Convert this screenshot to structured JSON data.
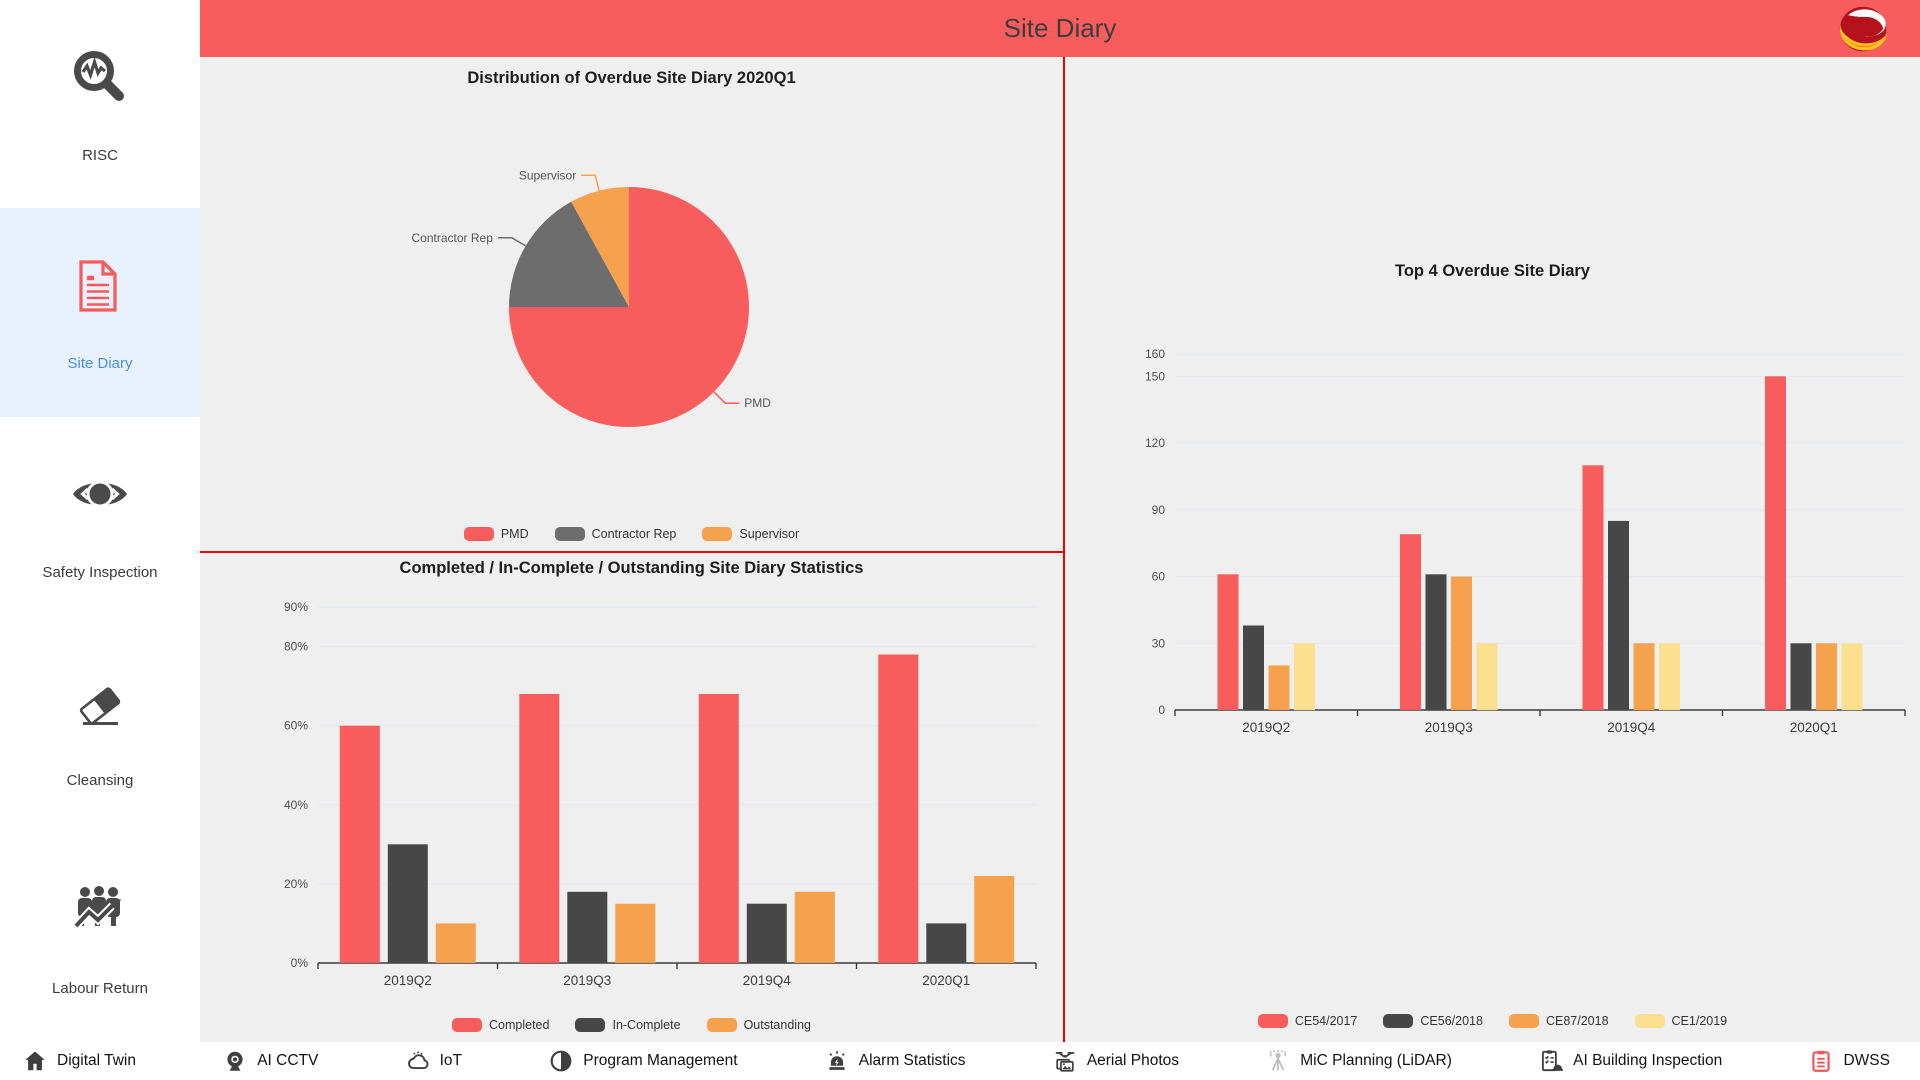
{
  "header": {
    "title": "Site Diary"
  },
  "sidebar": {
    "items": [
      {
        "label": "RISC",
        "active": false
      },
      {
        "label": "Site Diary",
        "active": true
      },
      {
        "label": "Safety Inspection",
        "active": false
      },
      {
        "label": "Cleansing",
        "active": false
      },
      {
        "label": "Labour Return",
        "active": false
      }
    ]
  },
  "colors": {
    "accent_red": "#f75d5d",
    "divider_red": "#e60000",
    "active_blue": "#4a90e2",
    "active_item_bg": "#e8f1fc",
    "bar_dark": "#474747",
    "pie_gray": "#6d6d6d",
    "orange": "#f5a14d",
    "pale_yellow": "#fadf8f"
  },
  "chart_data": [
    {
      "type": "pie",
      "title": "Distribution of Overdue Site Diary 2020Q1",
      "labels": [
        "PMD",
        "Contractor Rep",
        "Supervisor"
      ],
      "values": [
        75,
        17,
        8
      ],
      "values_unit": "% (estimated from slice angles)",
      "colors": [
        "#f85d5d",
        "#6d6d6d",
        "#f5a14d"
      ],
      "legend_position": "bottom"
    },
    {
      "type": "bar",
      "title": "Completed / In-Complete / Outstanding Site Diary Statistics",
      "categories": [
        "2019Q2",
        "2019Q3",
        "2019Q4",
        "2020Q1"
      ],
      "series": [
        {
          "name": "Completed",
          "color": "#f85d5d",
          "values": [
            60,
            68,
            68,
            78
          ]
        },
        {
          "name": "In-Complete",
          "color": "#474747",
          "values": [
            30,
            18,
            15,
            10
          ]
        },
        {
          "name": "Outstanding",
          "color": "#f5a14d",
          "values": [
            10,
            15,
            18,
            22
          ]
        }
      ],
      "xlabel": "",
      "ylabel": "",
      "ymax": 90,
      "yticks": [
        0,
        20,
        40,
        60,
        80,
        90
      ],
      "ytick_suffix": "%",
      "grid": true,
      "legend_position": "bottom"
    },
    {
      "type": "bar",
      "title": "Top 4 Overdue Site Diary",
      "categories": [
        "2019Q2",
        "2019Q3",
        "2019Q4",
        "2020Q1"
      ],
      "series": [
        {
          "name": "CE54/2017",
          "color": "#f85d5d",
          "values": [
            61,
            79,
            110,
            150
          ]
        },
        {
          "name": "CE56/2018",
          "color": "#474747",
          "values": [
            38,
            61,
            85,
            30
          ]
        },
        {
          "name": "CE87/2018",
          "color": "#f5a14d",
          "values": [
            20,
            60,
            30,
            30
          ]
        },
        {
          "name": "CE1/2019",
          "color": "#fadf8f",
          "values": [
            30,
            30,
            30,
            30
          ]
        }
      ],
      "xlabel": "",
      "ylabel": "",
      "ymax": 160,
      "yticks": [
        0,
        30,
        60,
        90,
        120,
        150,
        160
      ],
      "ytick_suffix": "",
      "grid": true,
      "legend_position": "bottom"
    }
  ],
  "bottom_nav": {
    "items": [
      {
        "label": "Digital Twin",
        "highlighted": false
      },
      {
        "label": "AI CCTV",
        "highlighted": false
      },
      {
        "label": "IoT",
        "highlighted": false
      },
      {
        "label": "Program Management",
        "highlighted": false
      },
      {
        "label": "Alarm Statistics",
        "highlighted": false
      },
      {
        "label": "Aerial Photos",
        "highlighted": false
      },
      {
        "label": "MiC Planning (LiDAR)",
        "highlighted": false
      },
      {
        "label": "AI Building Inspection",
        "highlighted": false
      },
      {
        "label": "DWSS",
        "highlighted": true
      }
    ]
  }
}
